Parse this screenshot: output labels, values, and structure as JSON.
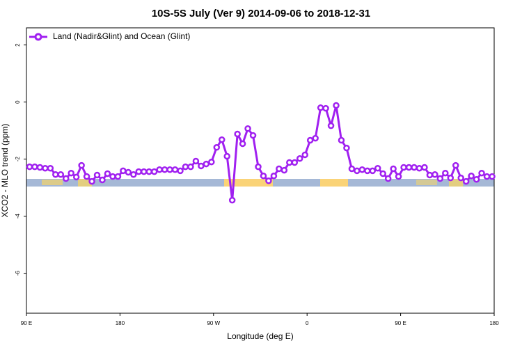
{
  "chart_data": {
    "type": "line",
    "title": "10S-5S July (Ver 9)   2014-09-06 to 2018-12-31",
    "xlabel": "Longitude (deg E)",
    "ylabel": "XCO2 - MLO trend (ppm)",
    "xlim": [
      90,
      540
    ],
    "ylim": [
      -7.4,
      2.6
    ],
    "xticks": [
      {
        "value": 90,
        "label": "90 E"
      },
      {
        "value": 180,
        "label": "180"
      },
      {
        "value": 270,
        "label": "90 W"
      },
      {
        "value": 360,
        "label": "0"
      },
      {
        "value": 450,
        "label": "90 E"
      },
      {
        "value": 540,
        "label": "180"
      }
    ],
    "yticks": [
      2,
      0,
      -2,
      -4,
      -6
    ],
    "legend": "top-left",
    "x": [
      93,
      98,
      103,
      108,
      113,
      118,
      123,
      128,
      133,
      138,
      143,
      148,
      153,
      158,
      163,
      168,
      173,
      178,
      183,
      188,
      193,
      198,
      203,
      208,
      213,
      218,
      223,
      228,
      233,
      238,
      243,
      248,
      253,
      258,
      263,
      268,
      273,
      278,
      283,
      288,
      293,
      298,
      303,
      308,
      313,
      318,
      323,
      328,
      333,
      338,
      343,
      348,
      353,
      358,
      363,
      368,
      373,
      378,
      383,
      388,
      393,
      398,
      403,
      408,
      413,
      418,
      423,
      428,
      433,
      438,
      443,
      448,
      453,
      458,
      463,
      468,
      473,
      478,
      483,
      488,
      493,
      498,
      503,
      508,
      513,
      518,
      523,
      528,
      533,
      538
    ],
    "series": [
      {
        "name": "Land (Nadir&Glint) and Ocean (Glint)",
        "color": "#a020f0",
        "values": [
          -2.27,
          -2.27,
          -2.29,
          -2.32,
          -2.32,
          -2.54,
          -2.54,
          -2.68,
          -2.49,
          -2.63,
          -2.22,
          -2.61,
          -2.78,
          -2.56,
          -2.73,
          -2.51,
          -2.61,
          -2.61,
          -2.41,
          -2.46,
          -2.54,
          -2.44,
          -2.44,
          -2.44,
          -2.44,
          -2.37,
          -2.37,
          -2.37,
          -2.37,
          -2.41,
          -2.27,
          -2.27,
          -2.07,
          -2.24,
          -2.17,
          -2.1,
          -1.59,
          -1.32,
          -1.9,
          -3.44,
          -1.12,
          -1.46,
          -0.93,
          -1.17,
          -2.27,
          -2.59,
          -2.76,
          -2.59,
          -2.34,
          -2.39,
          -2.12,
          -2.12,
          -1.98,
          -1.85,
          -1.34,
          -1.27,
          -0.2,
          -0.22,
          -0.83,
          -0.12,
          -1.34,
          -1.61,
          -2.34,
          -2.41,
          -2.37,
          -2.41,
          -2.41,
          -2.32,
          -2.51,
          -2.68,
          -2.34,
          -2.61,
          -2.29,
          -2.29,
          -2.29,
          -2.32,
          -2.29,
          -2.56,
          -2.54,
          -2.68,
          -2.49,
          -2.66,
          -2.22,
          -2.66,
          -2.78,
          -2.59,
          -2.71,
          -2.49,
          -2.61,
          -2.61
        ]
      }
    ]
  }
}
